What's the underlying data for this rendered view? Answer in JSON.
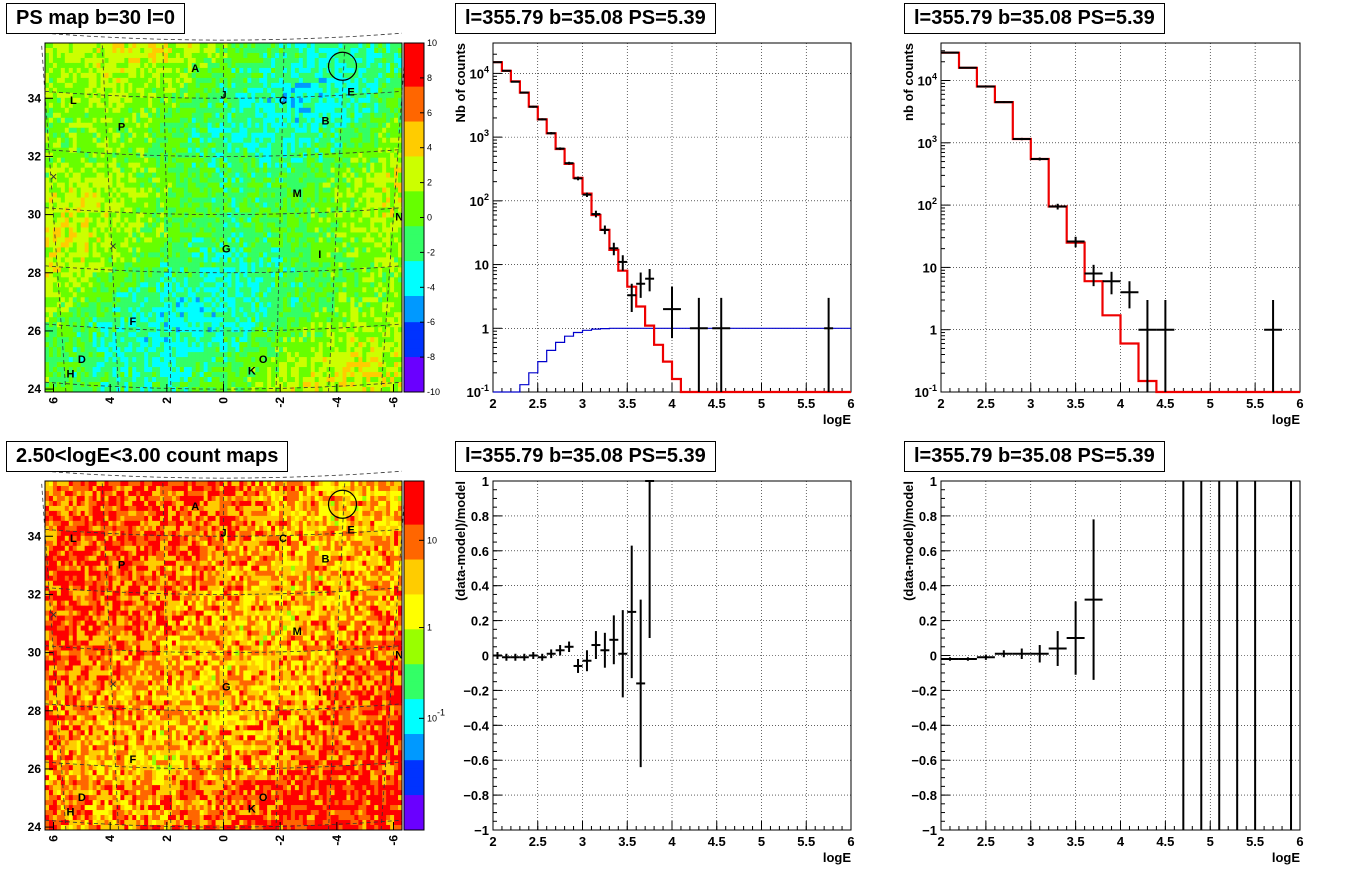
{
  "titles": {
    "map_ps": "PS map b=30 l=0",
    "map_counts": "2.50<logE<3.00 count maps",
    "spec_left": "l=355.79 b=35.08 PS=5.39",
    "spec_right": "l=355.79 b=35.08 PS=5.39",
    "resid_left": "l=355.79 b=35.08 PS=5.39",
    "resid_right": "l=355.79 b=35.08 PS=5.39"
  },
  "maps": {
    "y_ticks": [
      "24",
      "26",
      "28",
      "30",
      "32",
      "34"
    ],
    "x_ticks": [
      "6",
      "4",
      "2",
      "0",
      "-2",
      "-4",
      "-6"
    ],
    "source_labels": [
      "A",
      "J",
      "L",
      "C",
      "E",
      "B",
      "P",
      "M",
      "N",
      "G",
      "I",
      "F",
      "D",
      "H",
      "O",
      "K"
    ],
    "ps_colorbar_ticks": [
      "10",
      "8",
      "6",
      "4",
      "2",
      "0",
      "-2",
      "-4",
      "-6",
      "-8",
      "-10"
    ],
    "count_colorbar_ticks": [
      "10",
      "1",
      "10^-1"
    ]
  },
  "chart_data": [
    {
      "name": "ps_map",
      "type": "heatmap",
      "title": "PS map b=30 l=0",
      "xlabel": "",
      "ylabel": "",
      "xlim": [
        6.3,
        -6.3
      ],
      "ylim": [
        23.9,
        35.9
      ],
      "zlim": [
        -10,
        10
      ],
      "colorscale": [
        "#6a00ff",
        "#0033ff",
        "#0099ff",
        "#00ffff",
        "#33ff66",
        "#66ff00",
        "#ccff00",
        "#ffcc00",
        "#ff6600",
        "#ff0000"
      ],
      "sources": [
        {
          "label": "A",
          "l": 1.0,
          "b": 34.9
        },
        {
          "label": "J",
          "l": 0.0,
          "b": 34.0
        },
        {
          "label": "L",
          "l": 5.3,
          "b": 33.8
        },
        {
          "label": "C",
          "l": -2.1,
          "b": 33.8
        },
        {
          "label": "E",
          "l": -4.5,
          "b": 34.1
        },
        {
          "label": "B",
          "l": -3.6,
          "b": 33.1
        },
        {
          "label": "P",
          "l": 3.6,
          "b": 32.9
        },
        {
          "label": "M",
          "l": -2.6,
          "b": 30.6
        },
        {
          "label": "N",
          "l": -6.2,
          "b": 29.8
        },
        {
          "label": "G",
          "l": -0.1,
          "b": 28.7
        },
        {
          "label": "I",
          "l": -3.4,
          "b": 28.5
        },
        {
          "label": "F",
          "l": 3.2,
          "b": 26.2
        },
        {
          "label": "D",
          "l": 5.0,
          "b": 24.9
        },
        {
          "label": "H",
          "l": 5.4,
          "b": 24.4
        },
        {
          "label": "O",
          "l": -1.4,
          "b": 24.9
        },
        {
          "label": "K",
          "l": -1.0,
          "b": 24.5
        }
      ],
      "crosses": [
        {
          "l": 6.0,
          "b": 31.3
        },
        {
          "l": 3.9,
          "b": 28.9
        }
      ],
      "circle": {
        "l": -4.2,
        "b": 35.1
      }
    },
    {
      "name": "count_map",
      "type": "heatmap",
      "title": "2.50<logE<3.00 count maps",
      "xlim": [
        6.3,
        -6.3
      ],
      "ylim": [
        23.9,
        35.9
      ],
      "zscale": "log",
      "colorscale": [
        "#6a00ff",
        "#0033ff",
        "#0099ff",
        "#00ffff",
        "#33ff66",
        "#99ff00",
        "#ffff00",
        "#ffcc00",
        "#ff6600",
        "#ff0000"
      ]
    },
    {
      "name": "spectrum_left",
      "type": "line",
      "title": "l=355.79 b=35.08 PS=5.39",
      "xlabel": "logE",
      "ylabel": "Nb of counts",
      "xlim": [
        2,
        6
      ],
      "ylim": [
        0.1,
        30000
      ],
      "yscale": "log",
      "x_ticks": [
        "2",
        "2.5",
        "3",
        "3.5",
        "4",
        "4.5",
        "5",
        "5.5",
        "6"
      ],
      "y_ticks": [
        "10^-1",
        "1",
        "10",
        "10^2",
        "10^3",
        "10^4"
      ],
      "model_red": {
        "edges": [
          2,
          2.1,
          2.2,
          2.3,
          2.4,
          2.5,
          2.6,
          2.7,
          2.8,
          2.9,
          3.0,
          3.1,
          3.2,
          3.3,
          3.4,
          3.5,
          3.6,
          3.7,
          3.8,
          3.9,
          4.0,
          4.1,
          4.2,
          6.0
        ],
        "values": [
          15000,
          11000,
          7500,
          5000,
          3000,
          1900,
          1150,
          650,
          380,
          230,
          130,
          60,
          35,
          17,
          8,
          4.5,
          2.2,
          1.1,
          0.55,
          0.3,
          0.16,
          0.1,
          0.1
        ]
      },
      "model_blue": {
        "edges": [
          2,
          2.1,
          2.2,
          2.3,
          2.4,
          2.5,
          2.6,
          2.7,
          2.8,
          2.9,
          3.0,
          3.1,
          3.2,
          3.3,
          3.4,
          3.5,
          6.0
        ],
        "values": [
          0.1,
          0.1,
          0.1,
          0.13,
          0.2,
          0.3,
          0.45,
          0.6,
          0.75,
          0.86,
          0.93,
          0.97,
          0.99,
          1.0,
          1.0,
          1.0
        ]
      },
      "data_points": [
        {
          "x": 2.05,
          "y": 15000,
          "xerr": 0.05,
          "ylo": 14800,
          "yhi": 15200
        },
        {
          "x": 2.15,
          "y": 11000,
          "xerr": 0.05,
          "ylo": 10800,
          "yhi": 11200
        },
        {
          "x": 2.25,
          "y": 7400,
          "xerr": 0.05,
          "ylo": 7250,
          "yhi": 7550
        },
        {
          "x": 2.35,
          "y": 5000,
          "xerr": 0.05,
          "ylo": 4880,
          "yhi": 5120
        },
        {
          "x": 2.45,
          "y": 3000,
          "xerr": 0.05,
          "ylo": 2900,
          "yhi": 3100
        },
        {
          "x": 2.55,
          "y": 1900,
          "xerr": 0.05,
          "ylo": 1830,
          "yhi": 1970
        },
        {
          "x": 2.65,
          "y": 1150,
          "xerr": 0.05,
          "ylo": 1100,
          "yhi": 1200
        },
        {
          "x": 2.75,
          "y": 660,
          "xerr": 0.05,
          "ylo": 630,
          "yhi": 690
        },
        {
          "x": 2.85,
          "y": 390,
          "xerr": 0.05,
          "ylo": 370,
          "yhi": 410
        },
        {
          "x": 2.95,
          "y": 225,
          "xerr": 0.05,
          "ylo": 210,
          "yhi": 240
        },
        {
          "x": 3.05,
          "y": 125,
          "xerr": 0.05,
          "ylo": 115,
          "yhi": 135
        },
        {
          "x": 3.15,
          "y": 62,
          "xerr": 0.05,
          "ylo": 55,
          "yhi": 70
        },
        {
          "x": 3.25,
          "y": 35,
          "xerr": 0.05,
          "ylo": 30,
          "yhi": 41
        },
        {
          "x": 3.35,
          "y": 18,
          "xerr": 0.05,
          "ylo": 14,
          "yhi": 22
        },
        {
          "x": 3.45,
          "y": 11,
          "xerr": 0.05,
          "ylo": 8,
          "yhi": 14
        },
        {
          "x": 3.55,
          "y": 3.3,
          "xerr": 0.05,
          "ylo": 1.8,
          "yhi": 5
        },
        {
          "x": 3.65,
          "y": 5,
          "xerr": 0.05,
          "ylo": 3,
          "yhi": 7.5
        },
        {
          "x": 3.75,
          "y": 6,
          "xerr": 0.05,
          "ylo": 3.8,
          "yhi": 8.5
        },
        {
          "x": 4.0,
          "y": 2,
          "xerr": 0.1,
          "ylo": 0.7,
          "yhi": 4.5
        },
        {
          "x": 4.3,
          "y": 1,
          "xerr": 0.1,
          "ylo": 0.1,
          "yhi": 3
        },
        {
          "x": 4.55,
          "y": 1,
          "xerr": 0.1,
          "ylo": 0.1,
          "yhi": 3
        },
        {
          "x": 5.75,
          "y": 1,
          "xerr": 0.05,
          "ylo": 0.1,
          "yhi": 3
        }
      ]
    },
    {
      "name": "spectrum_right",
      "type": "line",
      "title": "l=355.79 b=35.08 PS=5.39",
      "xlabel": "logE",
      "ylabel": "nb of counts",
      "xlim": [
        2,
        6
      ],
      "ylim": [
        0.1,
        40000
      ],
      "yscale": "log",
      "x_ticks": [
        "2",
        "2.5",
        "3",
        "3.5",
        "4",
        "4.5",
        "5",
        "5.5",
        "6"
      ],
      "y_ticks": [
        "10^-1",
        "1",
        "10",
        "10^2",
        "10^3",
        "10^4"
      ],
      "model_red": {
        "edges": [
          2,
          2.2,
          2.4,
          2.6,
          2.8,
          3.0,
          3.2,
          3.4,
          3.6,
          3.8,
          4.0,
          4.2,
          4.4,
          6.0
        ],
        "values": [
          28000,
          16000,
          8000,
          4500,
          1150,
          550,
          95,
          25,
          6,
          1.7,
          0.6,
          0.15,
          0.1
        ]
      },
      "data_points": [
        {
          "x": 2.1,
          "y": 28000,
          "xerr": 0.1,
          "ylo": 27500,
          "yhi": 28500
        },
        {
          "x": 2.3,
          "y": 16000,
          "xerr": 0.1,
          "ylo": 15700,
          "yhi": 16300
        },
        {
          "x": 2.5,
          "y": 8000,
          "xerr": 0.1,
          "ylo": 7800,
          "yhi": 8200
        },
        {
          "x": 2.7,
          "y": 4500,
          "xerr": 0.1,
          "ylo": 4350,
          "yhi": 4650
        },
        {
          "x": 2.9,
          "y": 1150,
          "xerr": 0.1,
          "ylo": 1100,
          "yhi": 1200
        },
        {
          "x": 3.1,
          "y": 550,
          "xerr": 0.1,
          "ylo": 520,
          "yhi": 580
        },
        {
          "x": 3.3,
          "y": 95,
          "xerr": 0.1,
          "ylo": 85,
          "yhi": 105
        },
        {
          "x": 3.5,
          "y": 26,
          "xerr": 0.1,
          "ylo": 21,
          "yhi": 31
        },
        {
          "x": 3.7,
          "y": 8,
          "xerr": 0.1,
          "ylo": 5,
          "yhi": 11
        },
        {
          "x": 3.9,
          "y": 6,
          "xerr": 0.1,
          "ylo": 3.7,
          "yhi": 8.5
        },
        {
          "x": 4.1,
          "y": 4,
          "xerr": 0.1,
          "ylo": 2.2,
          "yhi": 6
        },
        {
          "x": 4.3,
          "y": 1,
          "xerr": 0.1,
          "ylo": 0.1,
          "yhi": 3
        },
        {
          "x": 4.5,
          "y": 1,
          "xerr": 0.1,
          "ylo": 0.1,
          "yhi": 3
        },
        {
          "x": 5.7,
          "y": 1,
          "xerr": 0.1,
          "ylo": 0.1,
          "yhi": 3
        }
      ]
    },
    {
      "name": "residual_left",
      "type": "scatter",
      "title": "l=355.79 b=35.08 PS=5.39",
      "xlabel": "logE",
      "ylabel": "(data-model)/model",
      "xlim": [
        2,
        6
      ],
      "ylim": [
        -1,
        1
      ],
      "x_ticks": [
        "2",
        "2.5",
        "3",
        "3.5",
        "4",
        "4.5",
        "5",
        "5.5",
        "6"
      ],
      "y_ticks": [
        "-1",
        "-0.8",
        "-0.6",
        "-0.4",
        "-0.2",
        "0",
        "0.2",
        "0.4",
        "0.6",
        "0.8",
        "1"
      ],
      "points": [
        {
          "x": 2.05,
          "y": 0.0,
          "xerr": 0.05,
          "yerr": 0.02
        },
        {
          "x": 2.15,
          "y": -0.01,
          "xerr": 0.05,
          "yerr": 0.02
        },
        {
          "x": 2.25,
          "y": -0.01,
          "xerr": 0.05,
          "yerr": 0.02
        },
        {
          "x": 2.35,
          "y": -0.01,
          "xerr": 0.05,
          "yerr": 0.02
        },
        {
          "x": 2.45,
          "y": 0.0,
          "xerr": 0.05,
          "yerr": 0.02
        },
        {
          "x": 2.55,
          "y": -0.01,
          "xerr": 0.05,
          "yerr": 0.02
        },
        {
          "x": 2.65,
          "y": 0.01,
          "xerr": 0.05,
          "yerr": 0.025
        },
        {
          "x": 2.75,
          "y": 0.03,
          "xerr": 0.05,
          "yerr": 0.03
        },
        {
          "x": 2.85,
          "y": 0.05,
          "xerr": 0.05,
          "yerr": 0.03
        },
        {
          "x": 2.95,
          "y": -0.06,
          "xerr": 0.05,
          "yerr": 0.04
        },
        {
          "x": 3.05,
          "y": -0.03,
          "xerr": 0.05,
          "yerr": 0.06
        },
        {
          "x": 3.15,
          "y": 0.06,
          "xerr": 0.05,
          "yerr": 0.08
        },
        {
          "x": 3.25,
          "y": 0.03,
          "xerr": 0.05,
          "yerr": 0.1
        },
        {
          "x": 3.35,
          "y": 0.09,
          "xerr": 0.05,
          "yerr": 0.14
        },
        {
          "x": 3.45,
          "y": 0.01,
          "xerr": 0.05,
          "yerr": 0.25
        },
        {
          "x": 3.55,
          "y": 0.25,
          "xerr": 0.05,
          "yerr": 0.38
        },
        {
          "x": 3.65,
          "y": -0.16,
          "xerr": 0.05,
          "yerr": 0.48
        },
        {
          "x": 3.75,
          "y": 1.0,
          "xerr": 0.05,
          "yerr": 0.9
        }
      ]
    },
    {
      "name": "residual_right",
      "type": "scatter",
      "title": "l=355.79 b=35.08 PS=5.39",
      "xlabel": "logE",
      "ylabel": "(data-model)/model",
      "xlim": [
        2,
        6
      ],
      "ylim": [
        -1,
        1
      ],
      "x_ticks": [
        "2",
        "2.5",
        "3",
        "3.5",
        "4",
        "4.5",
        "5",
        "5.5",
        "6"
      ],
      "y_ticks": [
        "-1",
        "-0.8",
        "-0.6",
        "-0.4",
        "-0.2",
        "0",
        "0.2",
        "0.4",
        "0.6",
        "0.8",
        "1"
      ],
      "points": [
        {
          "x": 2.1,
          "y": -0.02,
          "xerr": 0.1,
          "yerr": 0.01
        },
        {
          "x": 2.3,
          "y": -0.02,
          "xerr": 0.1,
          "yerr": 0.01
        },
        {
          "x": 2.5,
          "y": -0.01,
          "xerr": 0.1,
          "yerr": 0.015
        },
        {
          "x": 2.7,
          "y": 0.01,
          "xerr": 0.1,
          "yerr": 0.02
        },
        {
          "x": 2.9,
          "y": 0.01,
          "xerr": 0.1,
          "yerr": 0.03
        },
        {
          "x": 3.1,
          "y": 0.01,
          "xerr": 0.1,
          "yerr": 0.05
        },
        {
          "x": 3.3,
          "y": 0.04,
          "xerr": 0.1,
          "yerr": 0.1
        },
        {
          "x": 3.5,
          "y": 0.1,
          "xerr": 0.1,
          "yerr": 0.21
        },
        {
          "x": 3.7,
          "y": 0.32,
          "xerr": 0.1,
          "yerr": 0.46
        }
      ],
      "vertical_lines_x": [
        4.7,
        4.9,
        5.1,
        5.3,
        5.5,
        5.9
      ]
    }
  ]
}
